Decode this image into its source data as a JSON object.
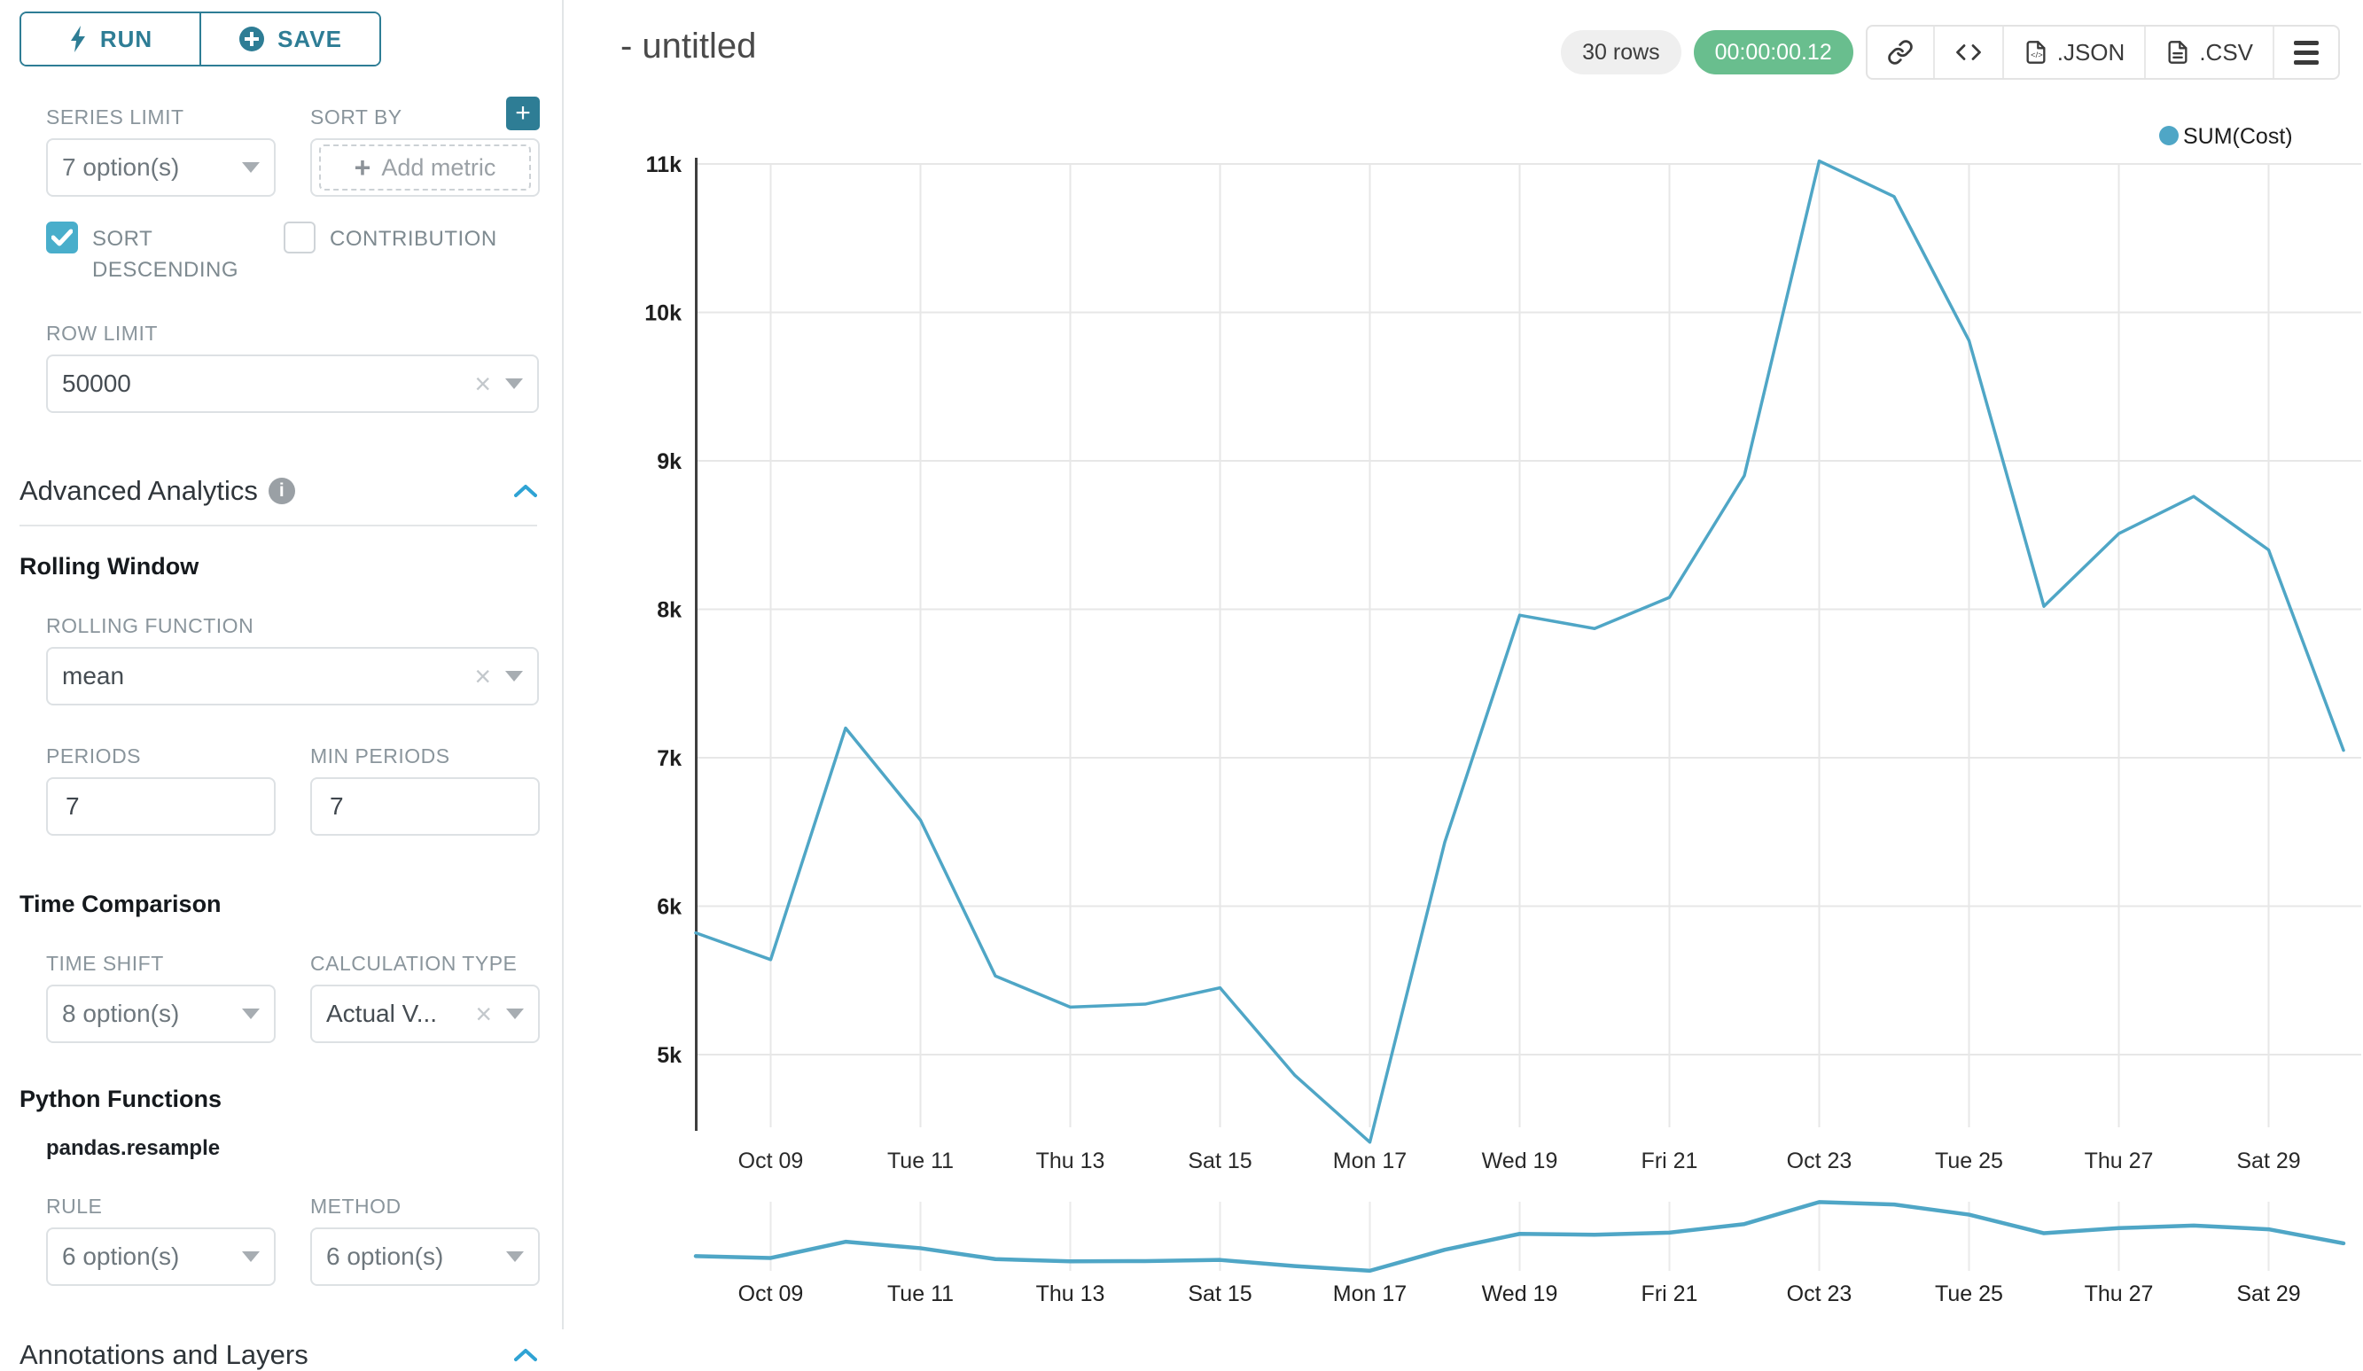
{
  "colors": {
    "accent_teal": "#2e7d95",
    "checkbox_blue": "#49aecb",
    "caret_blue": "#2fa3d4",
    "line": "#4fa6c6",
    "badge_green": "#69be8e",
    "gridline": "#e7e7e7",
    "axis_line": "#3f3f3f"
  },
  "sidebar": {
    "run_label": "RUN",
    "save_label": "SAVE",
    "series_limit": {
      "label": "SERIES LIMIT",
      "value": "7 option(s)"
    },
    "sort_by": {
      "label": "SORT BY",
      "placeholder": "Add metric"
    },
    "sort_descending": {
      "label": "SORT DESCENDING",
      "checked": true
    },
    "contribution": {
      "label": "CONTRIBUTION",
      "checked": false
    },
    "row_limit": {
      "label": "ROW LIMIT",
      "value": "50000"
    },
    "advanced_analytics": {
      "title": "Advanced Analytics"
    },
    "rolling_window": {
      "title": "Rolling Window"
    },
    "rolling_function": {
      "label": "ROLLING FUNCTION",
      "value": "mean"
    },
    "periods": {
      "label": "PERIODS",
      "value": "7"
    },
    "min_periods": {
      "label": "MIN PERIODS",
      "value": "7"
    },
    "time_comparison": {
      "title": "Time Comparison"
    },
    "time_shift": {
      "label": "TIME SHIFT",
      "value": "8 option(s)"
    },
    "calculation_type": {
      "label": "CALCULATION TYPE",
      "value": "Actual V..."
    },
    "python_functions": {
      "title": "Python Functions",
      "item": "pandas.resample"
    },
    "rule": {
      "label": "RULE",
      "value": "6 option(s)"
    },
    "method": {
      "label": "METHOD",
      "value": "6 option(s)"
    },
    "annotations": {
      "title": "Annotations and Layers"
    }
  },
  "header": {
    "title": "- untitled",
    "rows_badge": "30 rows",
    "timer_badge": "00:00:00.12",
    "json_label": ".JSON",
    "csv_label": ".CSV"
  },
  "chart_data": {
    "type": "line",
    "legend": [
      "SUM(Cost)"
    ],
    "legend_position": "top-right",
    "grid": true,
    "x": [
      "Oct 08",
      "Oct 09",
      "Oct 10",
      "Oct 11",
      "Oct 12",
      "Oct 13",
      "Oct 14",
      "Oct 15",
      "Oct 16",
      "Oct 17",
      "Oct 18",
      "Oct 19",
      "Oct 20",
      "Oct 21",
      "Oct 22",
      "Oct 23",
      "Oct 24",
      "Oct 25",
      "Oct 26",
      "Oct 27",
      "Oct 28",
      "Oct 29",
      "Oct 30"
    ],
    "series": [
      {
        "name": "SUM(Cost)",
        "values": [
          5820,
          5640,
          7200,
          6580,
          5530,
          5320,
          5340,
          5450,
          4860,
          4410,
          6430,
          7960,
          7870,
          8080,
          8900,
          11020,
          10780,
          9810,
          8020,
          8510,
          8760,
          8400,
          7050
        ]
      }
    ],
    "x_tick_labels": [
      "Oct 09",
      "Tue 11",
      "Thu 13",
      "Sat 15",
      "Mon 17",
      "Wed 19",
      "Fri 21",
      "Oct 23",
      "Tue 25",
      "Thu 27",
      "Sat 29"
    ],
    "x_tick_indices": [
      1,
      3,
      5,
      7,
      9,
      11,
      13,
      15,
      17,
      19,
      21
    ],
    "y_ticks": [
      {
        "v": 5000,
        "label": "5k"
      },
      {
        "v": 6000,
        "label": "6k"
      },
      {
        "v": 7000,
        "label": "7k"
      },
      {
        "v": 8000,
        "label": "8k"
      },
      {
        "v": 9000,
        "label": "9k"
      },
      {
        "v": 10000,
        "label": "10k"
      },
      {
        "v": 11000,
        "label": "11k"
      }
    ],
    "ylim": [
      5000,
      11000
    ],
    "has_mini_context_chart": true
  }
}
